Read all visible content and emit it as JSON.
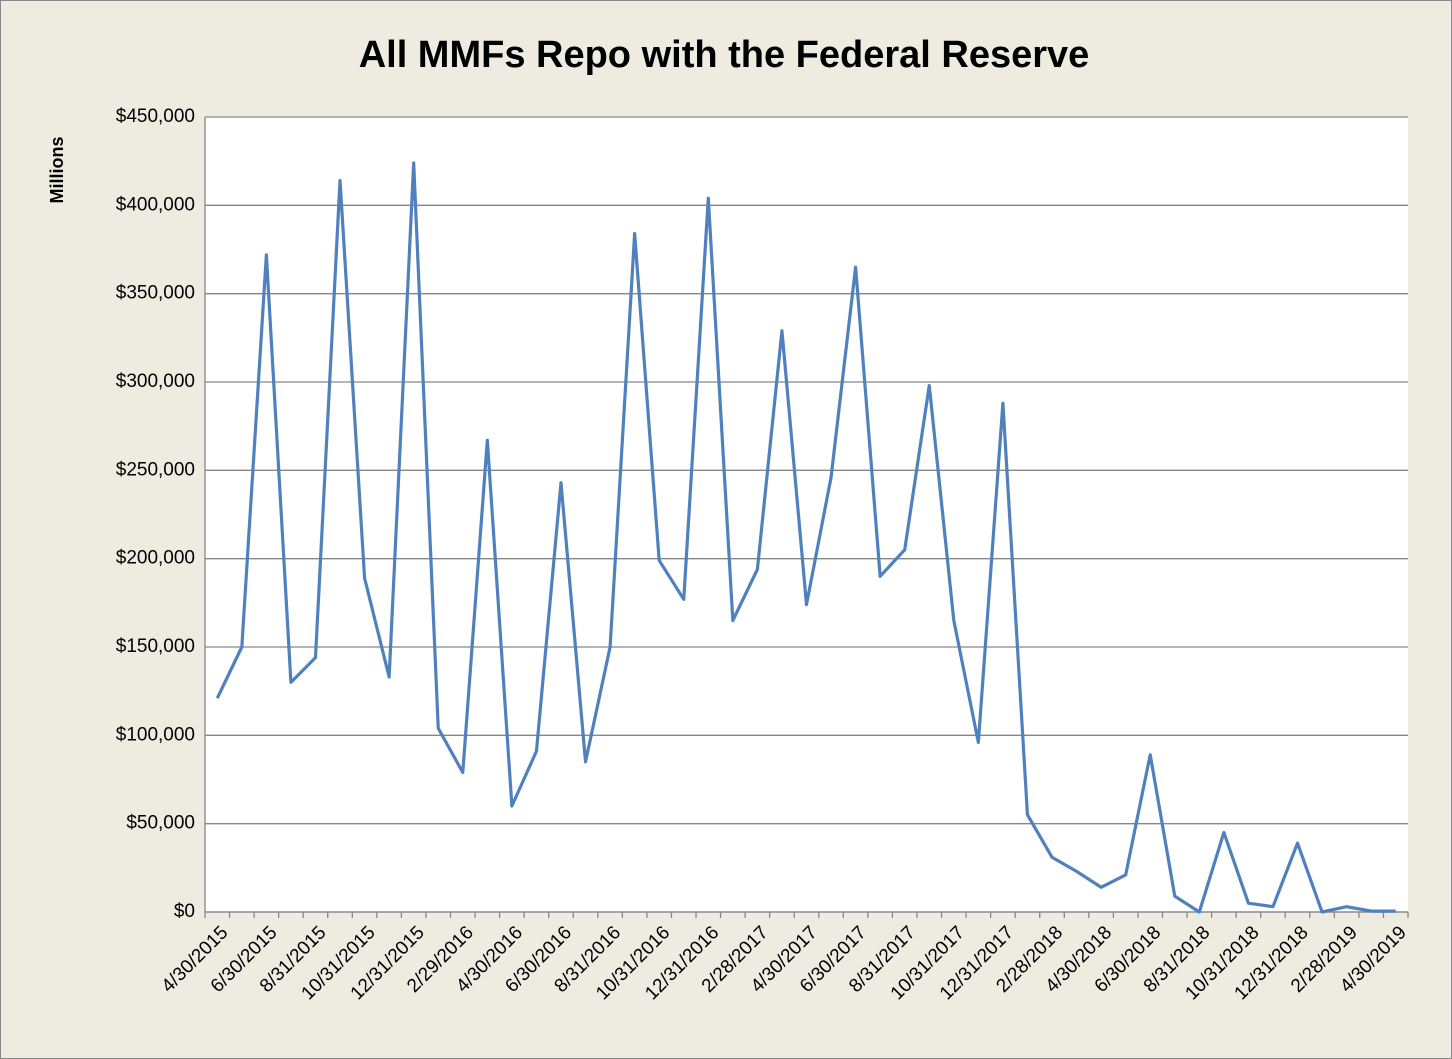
{
  "chart_data": {
    "type": "line",
    "title": "All MMFs Repo with the Federal Reserve",
    "y_label": "Millions",
    "categories": [
      "4/30/2015",
      null,
      "6/30/2015",
      null,
      "8/31/2015",
      null,
      "10/31/2015",
      null,
      "12/31/2015",
      null,
      "2/29/2016",
      null,
      "4/30/2016",
      null,
      "6/30/2016",
      null,
      "8/31/2016",
      null,
      "10/31/2016",
      null,
      "12/31/2016",
      null,
      "2/28/2017",
      null,
      "4/30/2017",
      null,
      "6/30/2017",
      null,
      "8/31/2017",
      null,
      "10/31/2017",
      null,
      "12/31/2017",
      null,
      "2/28/2018",
      null,
      "4/30/2018",
      null,
      "6/30/2018",
      null,
      "8/31/2018",
      null,
      "10/31/2018",
      null,
      "12/31/2018",
      null,
      "2/28/2019",
      null,
      "4/30/2019"
    ],
    "series": [
      {
        "name": "All MMFs Repo with the Federal Reserve",
        "color": "#4f81bd",
        "values": [
          121000,
          150000,
          372000,
          130000,
          144000,
          414000,
          189000,
          133000,
          424000,
          104000,
          79000,
          267000,
          60000,
          91000,
          243000,
          85000,
          150000,
          384000,
          199000,
          177000,
          404000,
          165000,
          194000,
          329000,
          174000,
          246000,
          365000,
          190000,
          205000,
          298000,
          165000,
          96000,
          288000,
          55000,
          31000,
          23000,
          14000,
          21000,
          89000,
          9000,
          0,
          45000,
          5000,
          3000,
          39000,
          0,
          3000,
          500,
          500
        ]
      }
    ],
    "ylim": [
      0,
      450000
    ],
    "yticks": [
      {
        "value": 0,
        "label": "$0"
      },
      {
        "value": 50000,
        "label": "$50,000"
      },
      {
        "value": 100000,
        "label": "$100,000"
      },
      {
        "value": 150000,
        "label": "$150,000"
      },
      {
        "value": 200000,
        "label": "$200,000"
      },
      {
        "value": 250000,
        "label": "$250,000"
      },
      {
        "value": 300000,
        "label": "$300,000"
      },
      {
        "value": 350000,
        "label": "$350,000"
      },
      {
        "value": 400000,
        "label": "$400,000"
      },
      {
        "value": 450000,
        "label": "$450,000"
      }
    ],
    "grid": true
  }
}
